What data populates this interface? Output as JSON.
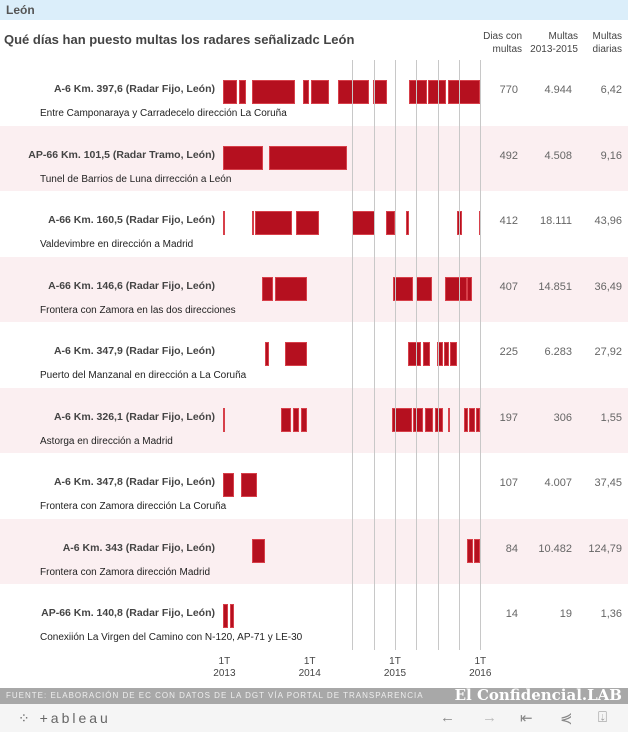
{
  "header": {
    "region": "León",
    "title": "Qué días han puesto multas los radares señalizadc León"
  },
  "columns": {
    "dias": [
      "Dias con",
      "multas"
    ],
    "multas": [
      "Multas",
      "2013-2015"
    ],
    "diarias": [
      "Multas",
      "diarias"
    ]
  },
  "chart_data": {
    "type": "timeline",
    "x_ticks": [
      {
        "q": "1T",
        "year": "2013",
        "t": 2013
      },
      {
        "q": "1T",
        "year": "2014",
        "t": 2014
      },
      {
        "q": "1T",
        "year": "2015",
        "t": 2015
      },
      {
        "q": "1T",
        "year": "2016",
        "t": 2016
      }
    ],
    "gridlines": [
      2014.5,
      2014.75,
      2015,
      2015.25,
      2015.5,
      2015.75,
      2016
    ],
    "xlim": [
      2013,
      2016
    ],
    "rows": [
      {
        "label": "A-6  Km. 397,6 (Radar Fijo, León)",
        "sub": "Entre Camponaraya y Carradecelo dirección La Coruña",
        "dias": "770",
        "multas": "4.944",
        "diarias": "6,42",
        "bars": [
          [
            2012.98,
            2013.15
          ],
          [
            2013.17,
            2013.25
          ],
          [
            2013.32,
            2013.83
          ],
          [
            2013.92,
            2013.99
          ],
          [
            2014.02,
            2014.23
          ],
          [
            2014.33,
            2014.7
          ],
          [
            2014.74,
            2014.91
          ],
          [
            2015.16,
            2015.37
          ],
          [
            2015.39,
            2015.6
          ],
          [
            2015.62,
            2016.0
          ]
        ]
      },
      {
        "label": "AP-66  Km. 101,5 (Radar Tramo, León)",
        "sub": "Tunel de Barrios de Luna dirrección a León",
        "dias": "492",
        "multas": "4.508",
        "diarias": "9,16",
        "bars": [
          [
            2012.98,
            2013.45
          ],
          [
            2013.52,
            2014.44
          ]
        ]
      },
      {
        "label": "A-66  Km. 160,5 (Radar Fijo, León)",
        "sub": "Valdevimbre en dirección a Madrid",
        "dias": "412",
        "multas": "18.111",
        "diarias": "43,96",
        "bars": [
          [
            2012.98,
            2013.01
          ],
          [
            2013.32,
            2013.35
          ],
          [
            2013.36,
            2013.79
          ],
          [
            2013.84,
            2014.11
          ],
          [
            2014.5,
            2014.77
          ],
          [
            2014.89,
            2015.0
          ],
          [
            2015.13,
            2015.16
          ],
          [
            2015.73,
            2015.79
          ],
          [
            2015.98,
            2016.0
          ]
        ]
      },
      {
        "label": "A-66  Km. 146,6 (Radar Fijo, León)",
        "sub": "Frontera con Zamora en las dos direcciones",
        "dias": "407",
        "multas": "14.851",
        "diarias": "36,49",
        "bars": [
          [
            2013.44,
            2013.57
          ],
          [
            2013.59,
            2013.97
          ],
          [
            2014.98,
            2015.21
          ],
          [
            2015.25,
            2015.43
          ],
          [
            2015.59,
            2015.84
          ],
          [
            2015.84,
            2015.9
          ]
        ]
      },
      {
        "label": "A-6  Km. 347,9 (Radar Fijo, León)",
        "sub": "Puerto del Manzanal en dirección a La Coruña",
        "dias": "225",
        "multas": "6.283",
        "diarias": "27,92",
        "bars": [
          [
            2013.48,
            2013.52
          ],
          [
            2013.71,
            2013.97
          ],
          [
            2015.15,
            2015.3
          ],
          [
            2015.33,
            2015.41
          ],
          [
            2015.49,
            2015.56
          ],
          [
            2015.57,
            2015.63
          ],
          [
            2015.65,
            2015.73
          ]
        ]
      },
      {
        "label": "A-6  Km. 326,1 (Radar Fijo, León)",
        "sub": "Astorga en dirección a Madrid",
        "dias": "197",
        "multas": "306",
        "diarias": "1,55",
        "bars": [
          [
            2012.98,
            2013.01
          ],
          [
            2013.66,
            2013.78
          ],
          [
            2013.81,
            2013.87
          ],
          [
            2013.9,
            2013.97
          ],
          [
            2014.96,
            2015.2
          ],
          [
            2015.21,
            2015.33
          ],
          [
            2015.35,
            2015.44
          ],
          [
            2015.47,
            2015.56
          ],
          [
            2015.62,
            2015.65
          ],
          [
            2015.81,
            2015.86
          ],
          [
            2015.87,
            2015.94
          ],
          [
            2015.95,
            2016.0
          ]
        ]
      },
      {
        "label": "A-6  Km. 347,8 (Radar Fijo, León)",
        "sub": "Frontera con Zamora dirección La Coruña",
        "dias": "107",
        "multas": "4.007",
        "diarias": "37,45",
        "bars": [
          [
            2012.98,
            2013.11
          ],
          [
            2013.19,
            2013.38
          ]
        ]
      },
      {
        "label": "A-6  Km. 343 (Radar Fijo, León)",
        "sub": "Frontera con Zamora dirección Madrid",
        "dias": "84",
        "multas": "10.482",
        "diarias": "124,79",
        "bars": [
          [
            2013.32,
            2013.48
          ],
          [
            2015.84,
            2015.92
          ],
          [
            2015.93,
            2016.0
          ]
        ]
      },
      {
        "label": "AP-66  Km. 140,8 (Radar Fijo, León)",
        "sub": "Conexiión La Virgen del Camino con N-120, AP-71 y LE-30",
        "dias": "14",
        "multas": "19",
        "diarias": "1,36",
        "bars": [
          [
            2012.98,
            2013.04
          ],
          [
            2013.06,
            2013.11
          ]
        ]
      }
    ],
    "bar_color": "#b5101f"
  },
  "footer": {
    "source": "FUENTE: ELABORACIÓN DE EC CON DATOS DE LA DGT VÍA PORTAL DE TRANSPARENCIA",
    "brand": "El Confidencial.LAB"
  },
  "toolbar": {
    "logo": "+ableau"
  }
}
